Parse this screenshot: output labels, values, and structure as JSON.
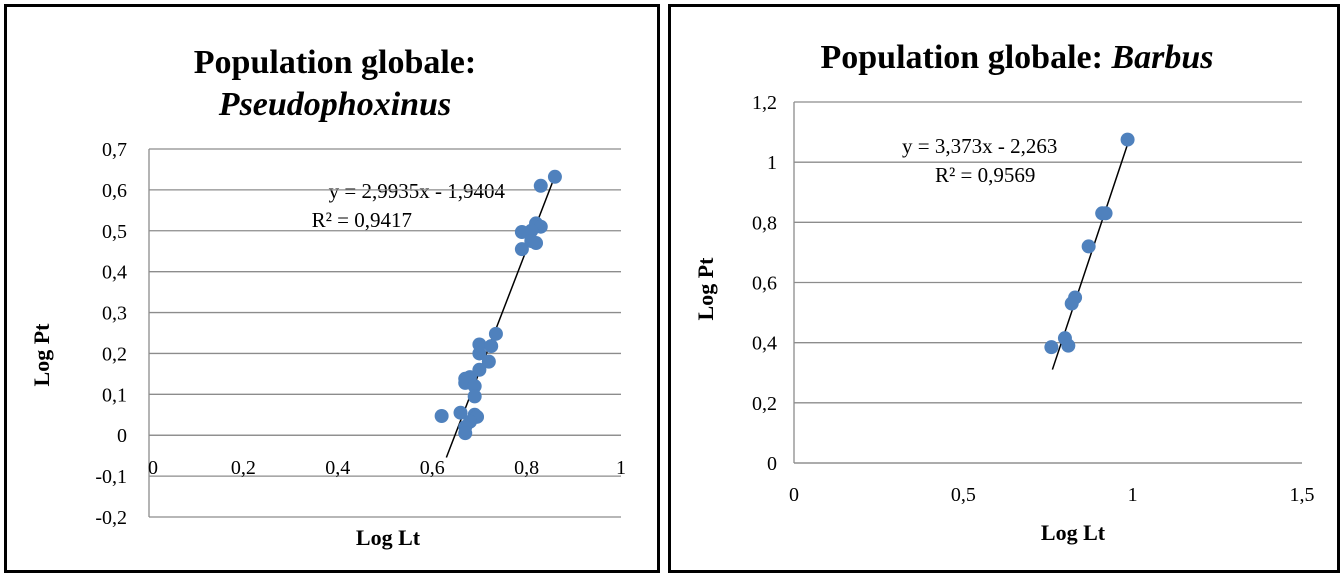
{
  "colors": {
    "marker": "#4f81bd",
    "trendline": "#000000",
    "gridline": "#8c8c8c"
  },
  "chart_data": [
    {
      "type": "scatter",
      "title_line1": "Population globale:",
      "title_line2": "Pseudophoxinus",
      "title_line2_italic": true,
      "xlabel": "Log Lt",
      "ylabel": "Log Pt",
      "xlim": [
        0,
        1
      ],
      "ylim": [
        -0.2,
        0.7
      ],
      "x_ticks": [
        "0",
        "0,2",
        "0,4",
        "0,6",
        "0,8",
        "1"
      ],
      "y_ticks": [
        "-0,2",
        "-0,1",
        "0",
        "0,1",
        "0,2",
        "0,3",
        "0,4",
        "0,5",
        "0,6",
        "0,7"
      ],
      "grid": "horizontal",
      "x_axis_crosses_y": 0,
      "equation": "y = 2,9935x - 1,9404",
      "r_squared": "R² = 0,9417",
      "trendline": {
        "slope": 2.9935,
        "intercept": -1.9404,
        "x_range": [
          0.63,
          0.855
        ]
      },
      "points": [
        [
          0.86,
          0.632
        ],
        [
          0.83,
          0.61
        ],
        [
          0.82,
          0.518
        ],
        [
          0.83,
          0.51
        ],
        [
          0.81,
          0.5
        ],
        [
          0.79,
          0.497
        ],
        [
          0.81,
          0.475
        ],
        [
          0.82,
          0.47
        ],
        [
          0.79,
          0.455
        ],
        [
          0.735,
          0.248
        ],
        [
          0.7,
          0.222
        ],
        [
          0.725,
          0.218
        ],
        [
          0.7,
          0.2
        ],
        [
          0.72,
          0.18
        ],
        [
          0.7,
          0.16
        ],
        [
          0.68,
          0.142
        ],
        [
          0.67,
          0.138
        ],
        [
          0.67,
          0.128
        ],
        [
          0.69,
          0.12
        ],
        [
          0.69,
          0.095
        ],
        [
          0.69,
          0.05
        ],
        [
          0.62,
          0.047
        ],
        [
          0.66,
          0.055
        ],
        [
          0.695,
          0.045
        ],
        [
          0.68,
          0.033
        ],
        [
          0.67,
          0.02
        ],
        [
          0.67,
          0.005
        ]
      ]
    },
    {
      "type": "scatter",
      "title_line1": "Population globale: ",
      "title_line2": "Barbus",
      "title_line2_italic": true,
      "xlabel": "Log Lt",
      "ylabel": "Log Pt",
      "xlim": [
        0,
        1.5
      ],
      "ylim": [
        0,
        1.2
      ],
      "x_ticks": [
        "0",
        "0,5",
        "1",
        "1,5"
      ],
      "y_ticks": [
        "0",
        "0,2",
        "0,4",
        "0,6",
        "0,8",
        "1",
        "1,2"
      ],
      "grid": "horizontal",
      "equation": "y = 3,373x - 2,263",
      "r_squared": "R² = 0,9569",
      "trendline": {
        "slope": 3.373,
        "intercept": -2.263,
        "x_range": [
          0.763,
          0.985
        ]
      },
      "points": [
        [
          0.985,
          1.075
        ],
        [
          0.91,
          0.83
        ],
        [
          0.92,
          0.83
        ],
        [
          0.87,
          0.72
        ],
        [
          0.83,
          0.55
        ],
        [
          0.82,
          0.53
        ],
        [
          0.8,
          0.415
        ],
        [
          0.81,
          0.39
        ],
        [
          0.76,
          0.385
        ]
      ]
    }
  ]
}
